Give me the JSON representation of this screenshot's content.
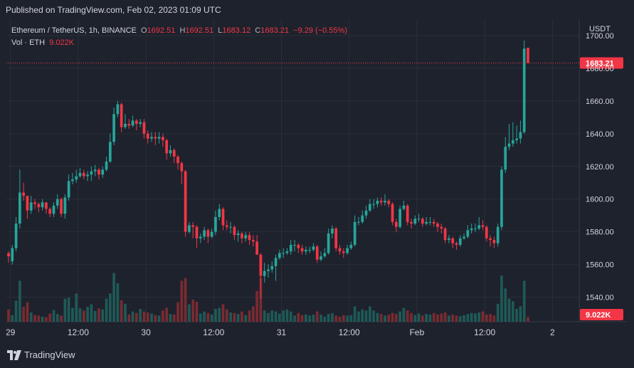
{
  "published": "Published on TradingView.com, Feb 02, 2023 01:09 UTC",
  "legend": {
    "symbol": "Ethereum / TetherUS, 1h, BINANCE",
    "o_label": "O",
    "o_value": "1692.51",
    "h_label": "H",
    "h_value": "1692.51",
    "l_label": "L",
    "l_value": "1683.12",
    "c_label": "C",
    "c_value": "1683.21",
    "change": "−9.29 (−0.55%)",
    "vol_label": "Vol · ETH",
    "vol_value": "9.022K"
  },
  "currency": "USDT",
  "footer_brand": "TradingView",
  "icons": [
    "tradingview-logo-icon"
  ],
  "colors": {
    "background": "#1e222d",
    "up": "#26a69a",
    "down": "#f23645",
    "up_volume": "#1e5a57",
    "down_volume": "#7a2b31",
    "grid": "#2a2e39",
    "text": "#d1d4dc"
  },
  "chart_data": {
    "type": "candlestick",
    "title": "Ethereum / TetherUS, 1h, BINANCE",
    "ylabel": "USDT",
    "ylim": [
      1525,
      1710
    ],
    "y_ticks": [
      "1700.00",
      "1680.00",
      "1660.00",
      "1640.00",
      "1620.00",
      "1600.00",
      "1580.00",
      "1560.00",
      "1540.00"
    ],
    "x_ticks": [
      "29",
      "12:00",
      "30",
      "12:00",
      "31",
      "12:00",
      "Feb",
      "12:00",
      "2"
    ],
    "last_price_label": "1683.21",
    "last_volume_label": "9.022K",
    "grid": true,
    "candles": [
      [
        1567,
        1565,
        1568,
        1561,
        24
      ],
      [
        1562,
        1570,
        1572,
        1560,
        13
      ],
      [
        1570,
        1585,
        1589,
        1568,
        41
      ],
      [
        1585,
        1604,
        1618,
        1582,
        80
      ],
      [
        1604,
        1602,
        1610,
        1599,
        29
      ],
      [
        1602,
        1593,
        1600,
        1588,
        38
      ],
      [
        1593,
        1598,
        1602,
        1591,
        18
      ],
      [
        1598,
        1597,
        1600,
        1594,
        13
      ],
      [
        1597,
        1595,
        1598,
        1592,
        12
      ],
      [
        1595,
        1598,
        1600,
        1593,
        10
      ],
      [
        1598,
        1594,
        1598,
        1591,
        9
      ],
      [
        1594,
        1591,
        1595,
        1589,
        16
      ],
      [
        1591,
        1596,
        1598,
        1589,
        23
      ],
      [
        1596,
        1600,
        1603,
        1594,
        15
      ],
      [
        1600,
        1591,
        1601,
        1589,
        12
      ],
      [
        1591,
        1601,
        1603,
        1588,
        45
      ],
      [
        1601,
        1611,
        1615,
        1599,
        47
      ],
      [
        1611,
        1612,
        1616,
        1609,
        27
      ],
      [
        1612,
        1614,
        1618,
        1610,
        55
      ],
      [
        1614,
        1616,
        1619,
        1613,
        26
      ],
      [
        1616,
        1614,
        1618,
        1612,
        22
      ],
      [
        1614,
        1615,
        1617,
        1611,
        29
      ],
      [
        1615,
        1617,
        1620,
        1611,
        34
      ],
      [
        1617,
        1618,
        1621,
        1614,
        21
      ],
      [
        1618,
        1615,
        1619,
        1612,
        26
      ],
      [
        1615,
        1618,
        1620,
        1613,
        24
      ],
      [
        1618,
        1623,
        1626,
        1617,
        45
      ],
      [
        1623,
        1635,
        1640,
        1622,
        55
      ],
      [
        1635,
        1652,
        1656,
        1633,
        95
      ],
      [
        1652,
        1658,
        1660,
        1650,
        75
      ],
      [
        1658,
        1644,
        1659,
        1641,
        42
      ],
      [
        1644,
        1646,
        1652,
        1643,
        35
      ],
      [
        1646,
        1645,
        1649,
        1643,
        14
      ],
      [
        1645,
        1648,
        1651,
        1644,
        20
      ],
      [
        1648,
        1646,
        1649,
        1642,
        17
      ],
      [
        1646,
        1647,
        1649,
        1644,
        25
      ],
      [
        1647,
        1640,
        1649,
        1637,
        20
      ],
      [
        1640,
        1637,
        1642,
        1634,
        18
      ],
      [
        1637,
        1638,
        1641,
        1635,
        16
      ],
      [
        1638,
        1637,
        1641,
        1633,
        13
      ],
      [
        1637,
        1638,
        1641,
        1634,
        12
      ],
      [
        1638,
        1636,
        1640,
        1632,
        22
      ],
      [
        1636,
        1628,
        1637,
        1624,
        27
      ],
      [
        1628,
        1630,
        1633,
        1626,
        15
      ],
      [
        1630,
        1626,
        1631,
        1622,
        14
      ],
      [
        1626,
        1622,
        1627,
        1618,
        38
      ],
      [
        1622,
        1617,
        1623,
        1609,
        80
      ],
      [
        1617,
        1580,
        1618,
        1577,
        85
      ],
      [
        1580,
        1584,
        1586,
        1579,
        34
      ],
      [
        1584,
        1583,
        1586,
        1576,
        43
      ],
      [
        1583,
        1576,
        1584,
        1570,
        39
      ],
      [
        1576,
        1577,
        1579,
        1573,
        16
      ],
      [
        1577,
        1581,
        1583,
        1575,
        20
      ],
      [
        1581,
        1577,
        1582,
        1573,
        17
      ],
      [
        1577,
        1580,
        1582,
        1576,
        14
      ],
      [
        1580,
        1589,
        1593,
        1578,
        25
      ],
      [
        1589,
        1594,
        1597,
        1587,
        27
      ],
      [
        1594,
        1584,
        1595,
        1581,
        34
      ],
      [
        1584,
        1583,
        1587,
        1581,
        24
      ],
      [
        1583,
        1583,
        1586,
        1579,
        18
      ],
      [
        1583,
        1578,
        1584,
        1575,
        17
      ],
      [
        1578,
        1579,
        1581,
        1574,
        15
      ],
      [
        1579,
        1576,
        1580,
        1573,
        20
      ],
      [
        1576,
        1578,
        1580,
        1574,
        13
      ],
      [
        1578,
        1575,
        1580,
        1572,
        22
      ],
      [
        1575,
        1574,
        1578,
        1571,
        30
      ],
      [
        1574,
        1566,
        1578,
        1566,
        60
      ],
      [
        1566,
        1553,
        1567,
        1539,
        85
      ],
      [
        1553,
        1556,
        1561,
        1549,
        22
      ],
      [
        1556,
        1557,
        1560,
        1552,
        17
      ],
      [
        1557,
        1559,
        1562,
        1555,
        22
      ],
      [
        1559,
        1564,
        1566,
        1550,
        20
      ],
      [
        1564,
        1567,
        1569,
        1563,
        16
      ],
      [
        1567,
        1567,
        1570,
        1564,
        22
      ],
      [
        1567,
        1568,
        1570,
        1566,
        24
      ],
      [
        1568,
        1572,
        1575,
        1566,
        20
      ],
      [
        1572,
        1572,
        1575,
        1568,
        12
      ],
      [
        1572,
        1570,
        1573,
        1567,
        17
      ],
      [
        1570,
        1568,
        1572,
        1566,
        13
      ],
      [
        1568,
        1569,
        1571,
        1566,
        14
      ],
      [
        1569,
        1569,
        1571,
        1567,
        12
      ],
      [
        1569,
        1571,
        1573,
        1568,
        14
      ],
      [
        1571,
        1563,
        1572,
        1561,
        20
      ],
      [
        1563,
        1565,
        1568,
        1562,
        14
      ],
      [
        1565,
        1567,
        1570,
        1564,
        10
      ],
      [
        1567,
        1579,
        1582,
        1566,
        15
      ],
      [
        1579,
        1582,
        1584,
        1576,
        17
      ],
      [
        1582,
        1570,
        1583,
        1568,
        12
      ],
      [
        1570,
        1568,
        1572,
        1566,
        10
      ],
      [
        1568,
        1567,
        1570,
        1564,
        13
      ],
      [
        1567,
        1570,
        1572,
        1566,
        12
      ],
      [
        1570,
        1572,
        1574,
        1569,
        13
      ],
      [
        1572,
        1586,
        1590,
        1571,
        30
      ],
      [
        1586,
        1586,
        1589,
        1584,
        20
      ],
      [
        1586,
        1590,
        1593,
        1585,
        24
      ],
      [
        1590,
        1593,
        1596,
        1588,
        22
      ],
      [
        1593,
        1597,
        1600,
        1592,
        30
      ],
      [
        1597,
        1597,
        1600,
        1594,
        22
      ],
      [
        1597,
        1599,
        1601,
        1595,
        17
      ],
      [
        1599,
        1598,
        1601,
        1596,
        15
      ],
      [
        1598,
        1599,
        1603,
        1596,
        12
      ],
      [
        1599,
        1597,
        1600,
        1595,
        14
      ],
      [
        1597,
        1586,
        1598,
        1584,
        17
      ],
      [
        1586,
        1583,
        1588,
        1580,
        15
      ],
      [
        1583,
        1594,
        1596,
        1582,
        20
      ],
      [
        1594,
        1596,
        1599,
        1593,
        27
      ],
      [
        1596,
        1586,
        1597,
        1584,
        22
      ],
      [
        1586,
        1585,
        1588,
        1582,
        17
      ],
      [
        1585,
        1588,
        1590,
        1584,
        13
      ],
      [
        1588,
        1588,
        1591,
        1586,
        16
      ],
      [
        1588,
        1585,
        1589,
        1583,
        12
      ],
      [
        1585,
        1586,
        1589,
        1584,
        15
      ],
      [
        1586,
        1586,
        1589,
        1584,
        14
      ],
      [
        1586,
        1585,
        1588,
        1583,
        17
      ],
      [
        1585,
        1583,
        1586,
        1580,
        14
      ],
      [
        1583,
        1582,
        1585,
        1579,
        16
      ],
      [
        1582,
        1575,
        1583,
        1573,
        18
      ],
      [
        1575,
        1576,
        1578,
        1573,
        12
      ],
      [
        1576,
        1573,
        1577,
        1570,
        14
      ],
      [
        1573,
        1572,
        1574,
        1569,
        12
      ],
      [
        1572,
        1576,
        1578,
        1571,
        11
      ],
      [
        1576,
        1577,
        1579,
        1575,
        13
      ],
      [
        1577,
        1581,
        1584,
        1576,
        15
      ],
      [
        1581,
        1582,
        1585,
        1579,
        17
      ],
      [
        1582,
        1582,
        1585,
        1580,
        16
      ],
      [
        1582,
        1584,
        1589,
        1581,
        18
      ],
      [
        1584,
        1583,
        1587,
        1581,
        20
      ],
      [
        1583,
        1576,
        1584,
        1574,
        14
      ],
      [
        1576,
        1575,
        1578,
        1571,
        15
      ],
      [
        1575,
        1573,
        1577,
        1570,
        12
      ],
      [
        1573,
        1583,
        1585,
        1571,
        35
      ],
      [
        1583,
        1618,
        1620,
        1581,
        90
      ],
      [
        1618,
        1632,
        1638,
        1616,
        65
      ],
      [
        1632,
        1634,
        1646,
        1630,
        45
      ],
      [
        1634,
        1636,
        1647,
        1632,
        40
      ],
      [
        1636,
        1637,
        1645,
        1634,
        25
      ],
      [
        1637,
        1641,
        1648,
        1634,
        30
      ],
      [
        1641,
        1692,
        1697,
        1640,
        80
      ],
      [
        1692.51,
        1683.21,
        1692.51,
        1683.12,
        9
      ]
    ]
  }
}
